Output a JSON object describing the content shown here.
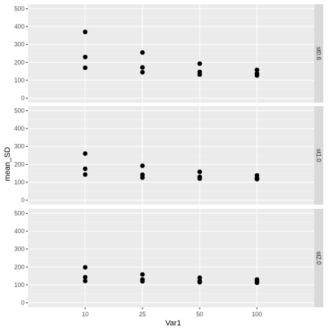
{
  "chart_data": {
    "type": "scatter",
    "xlabel": "Var1",
    "ylabel": "mean_SD",
    "categories": [
      "10",
      "25",
      "50",
      "100"
    ],
    "ylim": [
      -25,
      525
    ],
    "yticks": [
      0,
      100,
      200,
      300,
      400,
      500
    ],
    "grid": true,
    "facet_strip_position": "right",
    "panels": [
      {
        "name": "st0.6",
        "points": [
          {
            "x": "10",
            "y": 370
          },
          {
            "x": "10",
            "y": 230
          },
          {
            "x": "10",
            "y": 170
          },
          {
            "x": "25",
            "y": 255
          },
          {
            "x": "25",
            "y": 172
          },
          {
            "x": "25",
            "y": 145
          },
          {
            "x": "50",
            "y": 193
          },
          {
            "x": "50",
            "y": 147
          },
          {
            "x": "50",
            "y": 132
          },
          {
            "x": "100",
            "y": 158
          },
          {
            "x": "100",
            "y": 138
          },
          {
            "x": "100",
            "y": 127
          }
        ]
      },
      {
        "name": "st1.0",
        "points": [
          {
            "x": "10",
            "y": 260
          },
          {
            "x": "10",
            "y": 175
          },
          {
            "x": "10",
            "y": 143
          },
          {
            "x": "25",
            "y": 192
          },
          {
            "x": "25",
            "y": 142
          },
          {
            "x": "25",
            "y": 126
          },
          {
            "x": "50",
            "y": 158
          },
          {
            "x": "50",
            "y": 130
          },
          {
            "x": "50",
            "y": 120
          },
          {
            "x": "100",
            "y": 138
          },
          {
            "x": "100",
            "y": 122
          },
          {
            "x": "100",
            "y": 117
          }
        ]
      },
      {
        "name": "st2.0",
        "points": [
          {
            "x": "10",
            "y": 198
          },
          {
            "x": "10",
            "y": 143
          },
          {
            "x": "10",
            "y": 122
          },
          {
            "x": "25",
            "y": 158
          },
          {
            "x": "25",
            "y": 130
          },
          {
            "x": "25",
            "y": 120
          },
          {
            "x": "50",
            "y": 140
          },
          {
            "x": "50",
            "y": 122
          },
          {
            "x": "50",
            "y": 115
          },
          {
            "x": "100",
            "y": 130
          },
          {
            "x": "100",
            "y": 120
          },
          {
            "x": "100",
            "y": 112
          }
        ]
      }
    ]
  }
}
